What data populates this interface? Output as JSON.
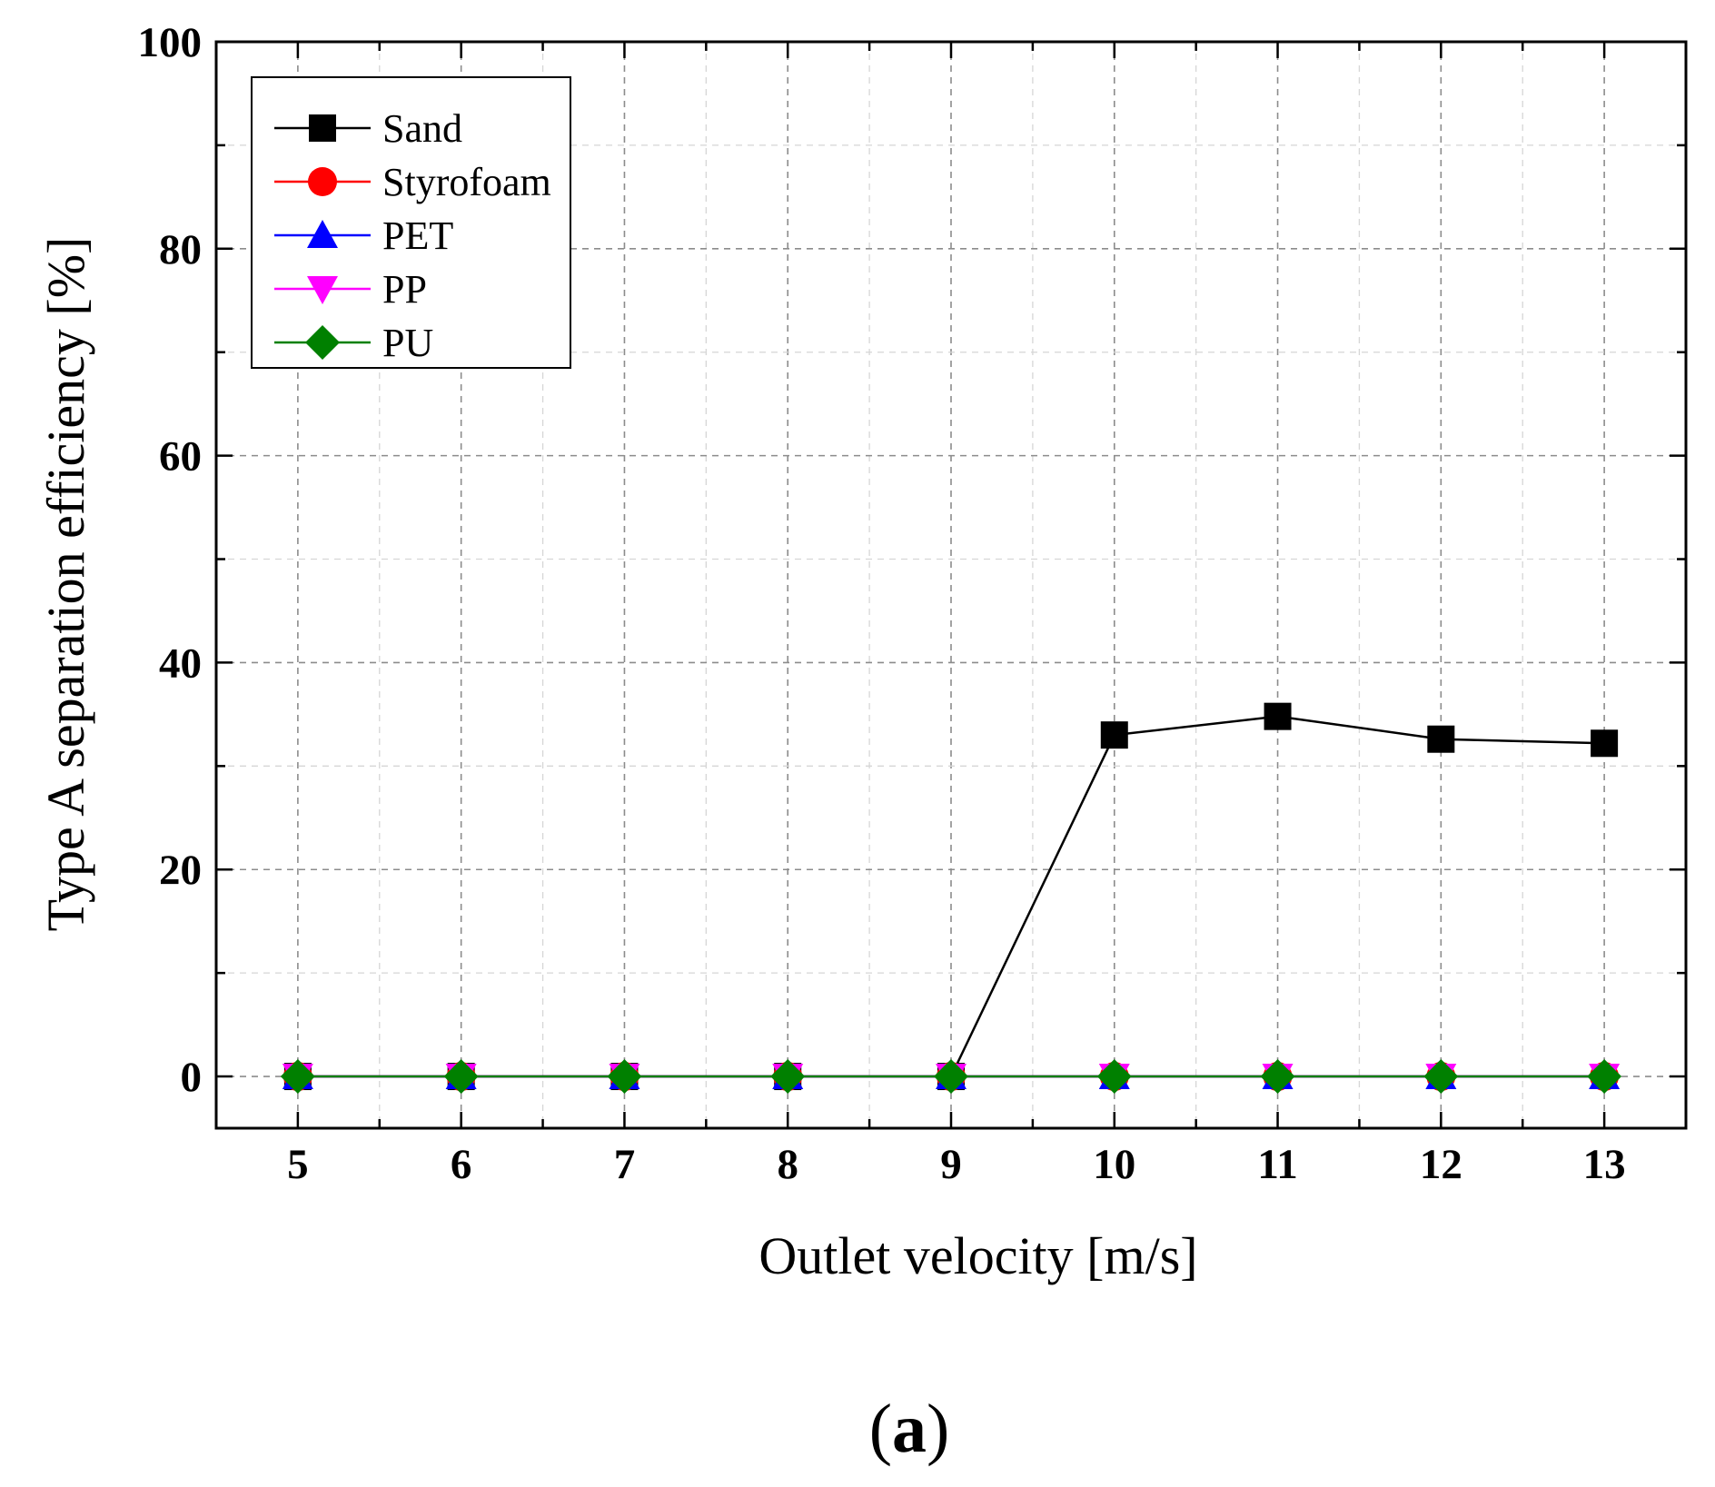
{
  "chart_data": {
    "type": "line",
    "xlabel": "Outlet velocity [m/s]",
    "ylabel": "Type A separation efficiency [%]",
    "x": [
      5,
      6,
      7,
      8,
      9,
      10,
      11,
      12,
      13
    ],
    "xticks": [
      "5",
      "6",
      "7",
      "8",
      "9",
      "10",
      "11",
      "12",
      "13"
    ],
    "yticks": [
      "0",
      "20",
      "40",
      "60",
      "80",
      "100"
    ],
    "xlim": [
      4.5,
      13.5
    ],
    "ylim": [
      -5,
      100
    ],
    "grid": true,
    "legend_position": "top-left",
    "series": [
      {
        "name": "Sand",
        "color": "#000000",
        "marker": "square",
        "values": [
          0,
          0,
          0,
          0,
          0,
          33.0,
          34.8,
          32.6,
          32.2
        ]
      },
      {
        "name": "Styrofoam",
        "color": "#ff0000",
        "marker": "circle",
        "values": [
          0,
          0,
          0,
          0,
          0,
          0,
          0,
          0,
          0
        ]
      },
      {
        "name": "PET",
        "color": "#0000ff",
        "marker": "triangle-up",
        "values": [
          0,
          0,
          0,
          0,
          0,
          0,
          0,
          0,
          0
        ]
      },
      {
        "name": "PP",
        "color": "#ff00ff",
        "marker": "triangle-down",
        "values": [
          0,
          0,
          0,
          0,
          0,
          0,
          0,
          0,
          0
        ]
      },
      {
        "name": "PU",
        "color": "#008000",
        "marker": "diamond",
        "values": [
          0,
          0,
          0,
          0,
          0,
          0,
          0,
          0,
          0
        ]
      }
    ]
  },
  "panel_label": {
    "open": "(",
    "letter": "a",
    "close": ")"
  }
}
